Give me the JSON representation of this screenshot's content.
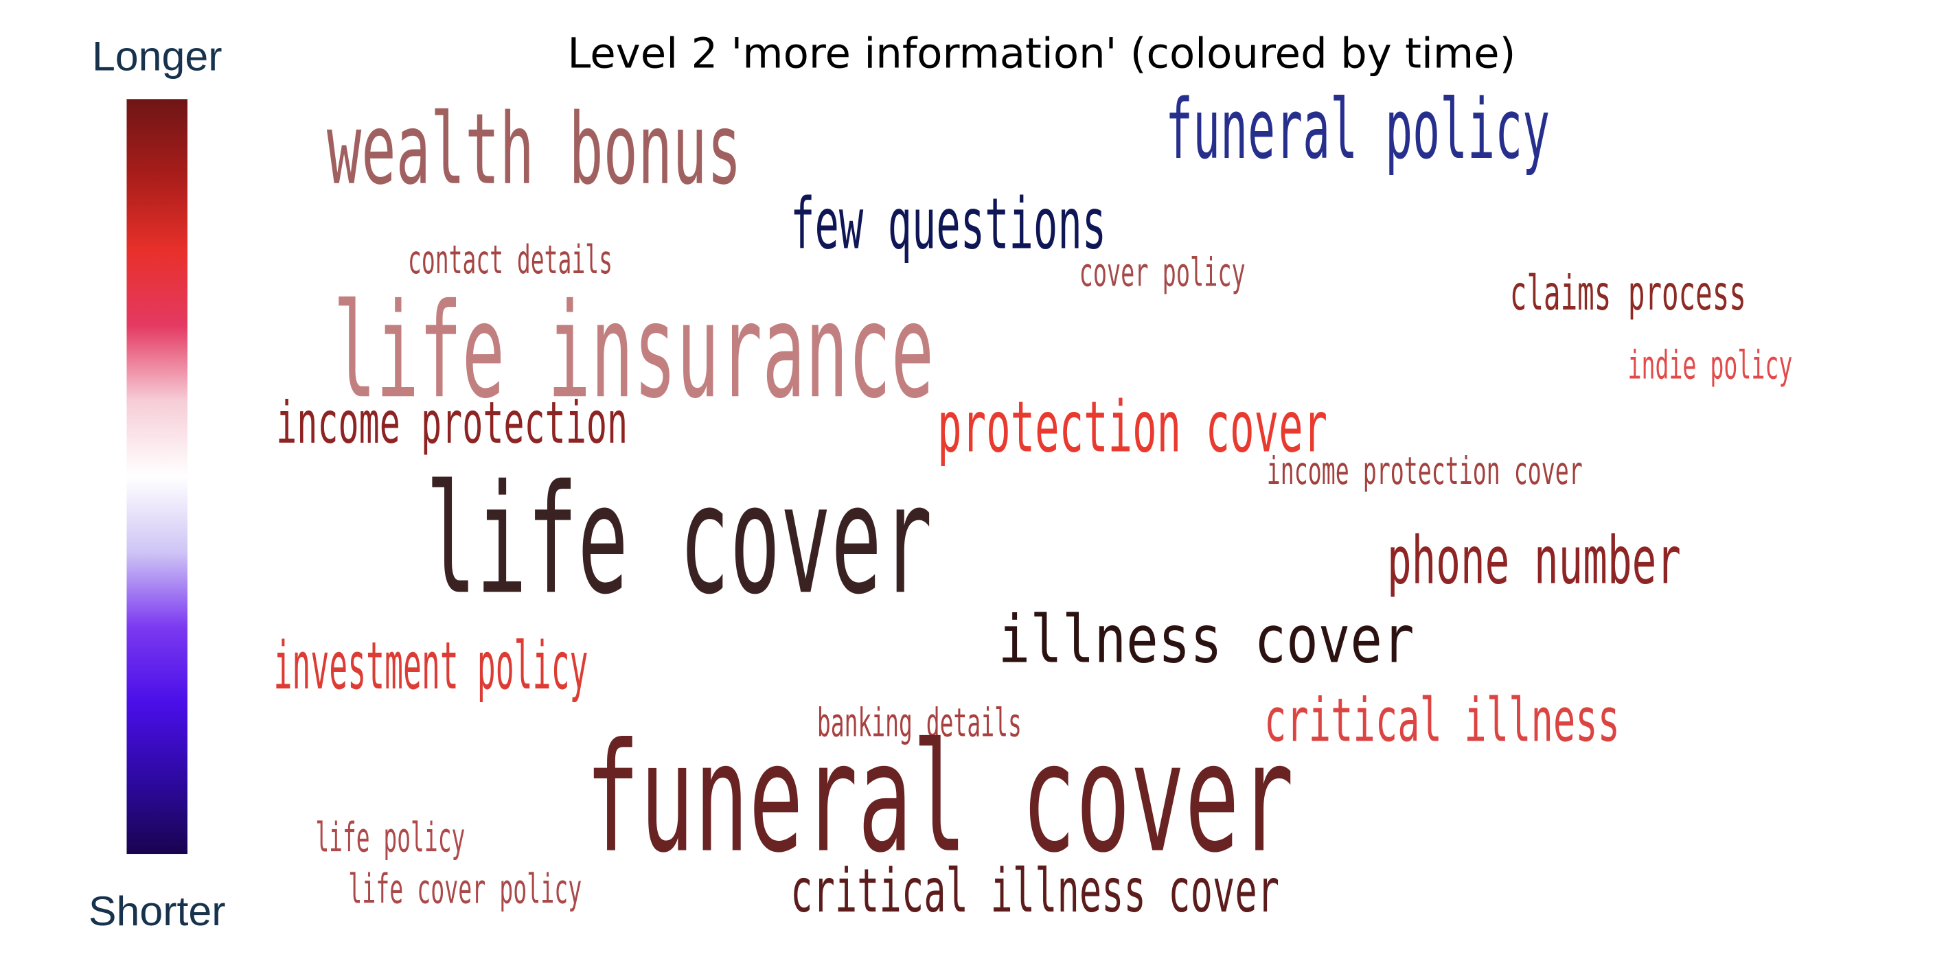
{
  "title": "Level 2 'more information' (coloured by time)",
  "colorbar": {
    "label_top": "Longer",
    "label_bottom": "Shorter",
    "stops": [
      "#6e1616",
      "#a81d1a",
      "#e8302a",
      "#e43a62",
      "#f6cdd7",
      "#ffffff",
      "#cfc5f5",
      "#7b39f0",
      "#4a0fe8",
      "#2e09a2",
      "#190450"
    ]
  },
  "words": [
    {
      "text": "wealth bonus",
      "color": "#a0605f"
    },
    {
      "text": "funeral policy",
      "color": "#272f8c"
    },
    {
      "text": "few questions",
      "color": "#0f1656"
    },
    {
      "text": "contact details",
      "color": "#a54644"
    },
    {
      "text": "cover policy",
      "color": "#a54a48"
    },
    {
      "text": "claims process",
      "color": "#8c2a24"
    },
    {
      "text": "life insurance",
      "color": "#c27f7f"
    },
    {
      "text": "indie policy",
      "color": "#e24a4a"
    },
    {
      "text": "income protection",
      "color": "#8e2323"
    },
    {
      "text": "protection cover",
      "color": "#e83a2e"
    },
    {
      "text": "income protection cover",
      "color": "#a3413f"
    },
    {
      "text": "life cover",
      "color": "#3a2222"
    },
    {
      "text": "phone number",
      "color": "#8e2423"
    },
    {
      "text": "illness cover",
      "color": "#2c1111"
    },
    {
      "text": "investment policy",
      "color": "#dd3c34"
    },
    {
      "text": "banking details",
      "color": "#a94040"
    },
    {
      "text": "critical illness",
      "color": "#dc4442"
    },
    {
      "text": "funeral cover",
      "color": "#6a2323"
    },
    {
      "text": "life policy",
      "color": "#b04a4a"
    },
    {
      "text": "life cover policy",
      "color": "#aa4949"
    },
    {
      "text": "critical illness cover",
      "color": "#5c1c1c"
    }
  ]
}
